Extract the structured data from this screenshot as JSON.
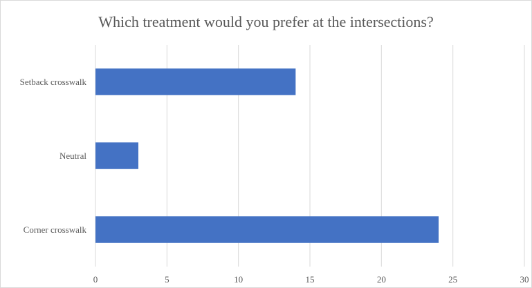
{
  "chart_data": {
    "type": "bar",
    "orientation": "horizontal",
    "title": "Which treatment would you prefer at the intersections?",
    "categories": [
      "Setback crosswalk",
      "Neutral",
      "Corner crosswalk"
    ],
    "values": [
      14,
      3,
      24
    ],
    "xlim": [
      0,
      30
    ],
    "xticks": [
      0,
      5,
      10,
      15,
      20,
      25,
      30
    ],
    "grid": true,
    "bar_color": "#4472C4",
    "grid_color": "#d9d9d9",
    "text_color": "#595959"
  }
}
